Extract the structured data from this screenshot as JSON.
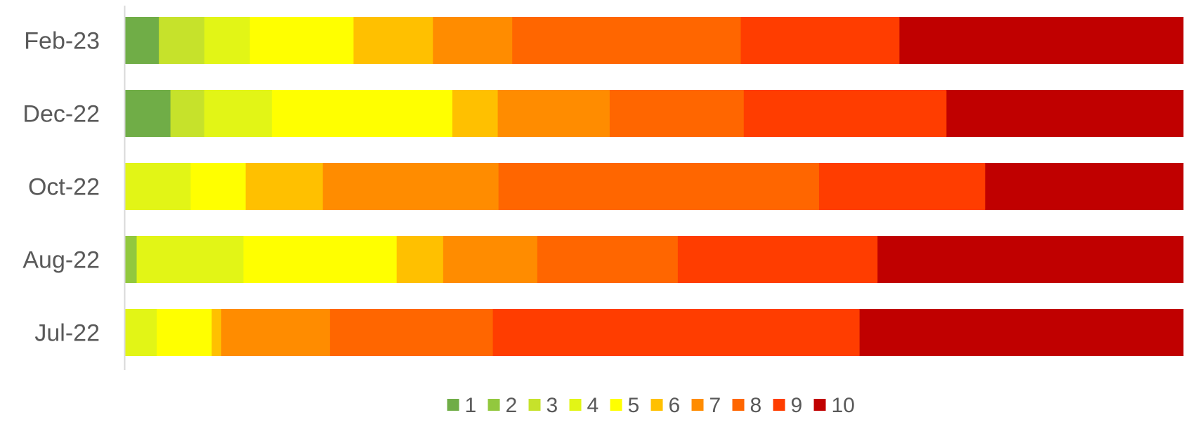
{
  "chart_data": {
    "type": "bar",
    "orientation": "horizontal",
    "stacked": "percent",
    "categories": [
      "Feb-23",
      "Dec-22",
      "Oct-22",
      "Aug-22",
      "Jul-22"
    ],
    "series": [
      {
        "name": "1",
        "color": "#70ad47",
        "values": [
          3.2,
          4.3,
          0,
          0,
          0
        ]
      },
      {
        "name": "2",
        "color": "#92c83e",
        "values": [
          0,
          0,
          0,
          1.1,
          0
        ]
      },
      {
        "name": "3",
        "color": "#c6e22b",
        "values": [
          4.3,
          3.2,
          0,
          0,
          0
        ]
      },
      {
        "name": "4",
        "color": "#e2f516",
        "values": [
          4.3,
          6.4,
          6.2,
          10.1,
          3.0
        ]
      },
      {
        "name": "5",
        "color": "#ffff00",
        "values": [
          9.8,
          17.1,
          5.2,
          14.5,
          5.2
        ]
      },
      {
        "name": "6",
        "color": "#ffc000",
        "values": [
          7.5,
          4.3,
          7.3,
          4.4,
          0.9
        ]
      },
      {
        "name": "7",
        "color": "#ff8c00",
        "values": [
          7.5,
          10.6,
          16.6,
          8.9,
          10.3
        ]
      },
      {
        "name": "8",
        "color": "#ff6600",
        "values": [
          21.6,
          12.7,
          30.3,
          13.3,
          15.4
        ]
      },
      {
        "name": "9",
        "color": "#ff3d00",
        "values": [
          15.0,
          19.2,
          15.7,
          18.9,
          34.7
        ]
      },
      {
        "name": "10",
        "color": "#c00000",
        "values": [
          26.8,
          22.4,
          18.7,
          28.9,
          30.6
        ]
      }
    ],
    "xlim": [
      0,
      100
    ],
    "grid": false,
    "legend": "bottom",
    "axis_color": "#d9d9d9"
  }
}
